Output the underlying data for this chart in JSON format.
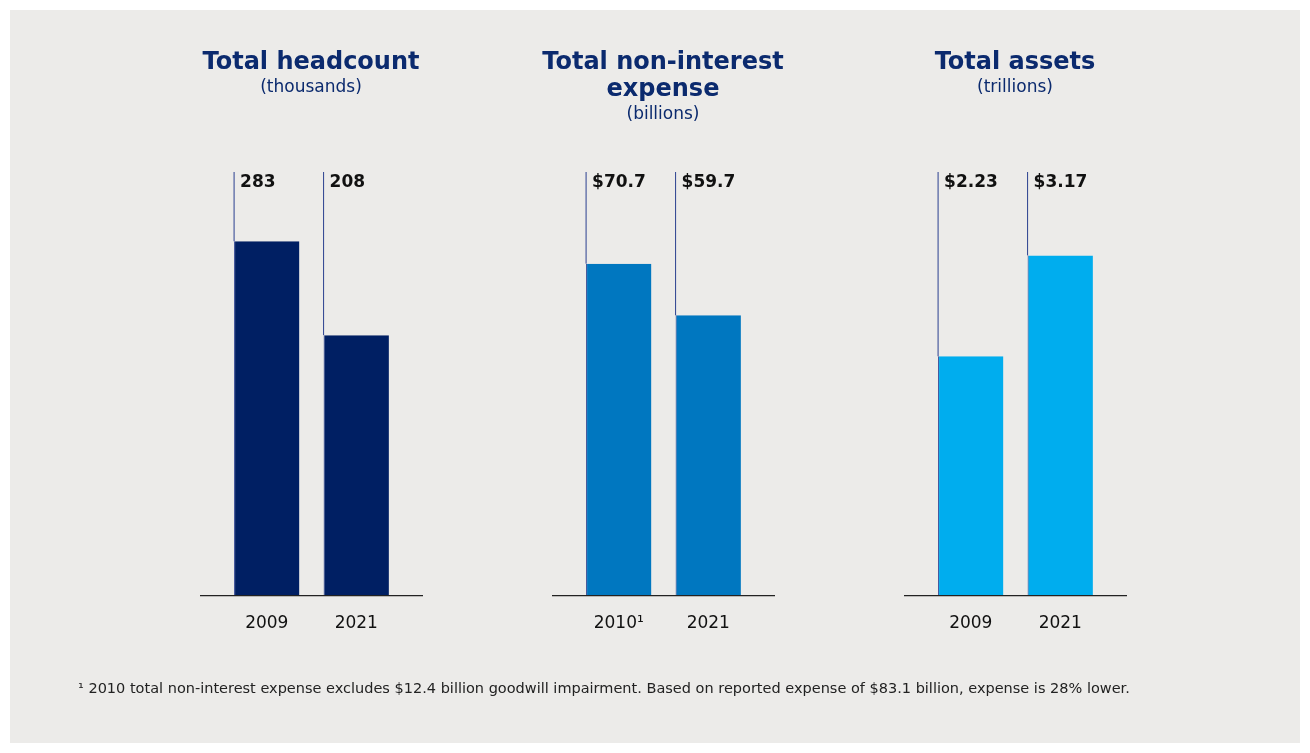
{
  "chart_data": [
    {
      "type": "bar",
      "title": "Total headcount",
      "subtitle": "(thousands)",
      "categories": [
        "2009",
        "2021"
      ],
      "values": [
        283,
        208
      ],
      "value_labels": [
        "283",
        "208"
      ],
      "color": "#001f63",
      "tick_labels": "x",
      "grid": false,
      "legend": false
    },
    {
      "type": "bar",
      "title": "Total non-interest expense",
      "subtitle": "(billions)",
      "categories": [
        "2010¹",
        "2021"
      ],
      "values": [
        70.7,
        59.7
      ],
      "value_labels": [
        "$70.7",
        "$59.7"
      ],
      "color": "#0077c0",
      "tick_labels": "x",
      "grid": false,
      "legend": false,
      "annotations": [
        "¹ 2010 total non-interest expense excludes $12.4 billion goodwill impairment. Based on reported expense of $83.1 billion, expense is 28% lower."
      ]
    },
    {
      "type": "bar",
      "title": "Total assets",
      "subtitle": "(trillions)",
      "categories": [
        "2009",
        "2021"
      ],
      "values": [
        2.23,
        3.17
      ],
      "value_labels": [
        "$2.23",
        "$3.17"
      ],
      "color": "#00adee",
      "tick_labels": "x",
      "grid": false,
      "legend": false
    }
  ]
}
